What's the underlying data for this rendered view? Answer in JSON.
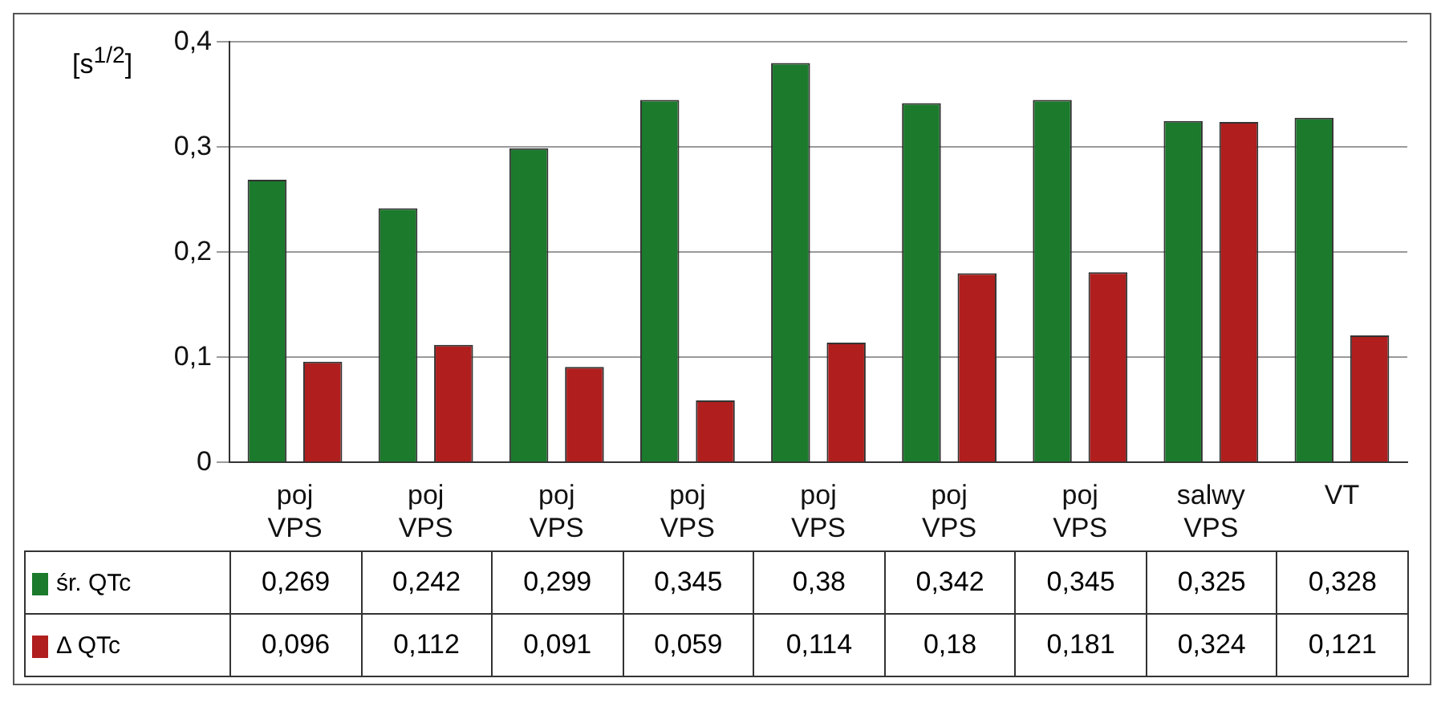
{
  "chart_data": {
    "type": "bar",
    "ylabel": "[s$^{1/2}$]",
    "categories": [
      "poj VPS",
      "poj VPS",
      "poj VPS",
      "poj VPS",
      "poj VPS",
      "poj VPS",
      "poj VPS",
      "salwy VPS",
      "VT"
    ],
    "series": [
      {
        "name": "śr. QTc",
        "color": "#1b7a2c",
        "values": [
          0.269,
          0.242,
          0.299,
          0.345,
          0.38,
          0.342,
          0.345,
          0.325,
          0.328
        ],
        "value_labels": [
          "0,269",
          "0,242",
          "0,299",
          "0,345",
          "0,38",
          "0,342",
          "0,345",
          "0,325",
          "0,328"
        ]
      },
      {
        "name": "Δ QTc",
        "color": "#b01e1e",
        "values": [
          0.096,
          0.112,
          0.091,
          0.059,
          0.114,
          0.18,
          0.181,
          0.324,
          0.121
        ],
        "value_labels": [
          "0,096",
          "0,112",
          "0,091",
          "0,059",
          "0,114",
          "0,18",
          "0,181",
          "0,324",
          "0,121"
        ]
      }
    ],
    "ylim": [
      0,
      0.4
    ],
    "yticks": [
      0,
      {
        "value": 0.1,
        "label": "0,1"
      },
      {
        "value": 0.2,
        "label": "0,2"
      },
      {
        "value": 0.3,
        "label": "0,3"
      },
      {
        "value": 0.4,
        "label": "0,4"
      }
    ],
    "grid": "y",
    "legend": "bottom"
  }
}
